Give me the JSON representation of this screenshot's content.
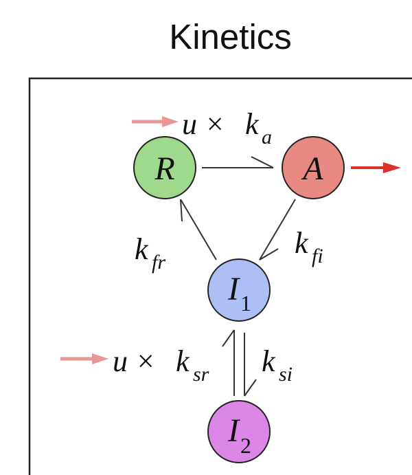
{
  "title": "Kinetics",
  "nodes": {
    "R": {
      "label": "R",
      "fill": "#9fd98b"
    },
    "A": {
      "label": "A",
      "fill": "#e88a82"
    },
    "I1": {
      "label": "I",
      "sub": "1",
      "fill": "#aebff6"
    },
    "I2": {
      "label": "I",
      "sub": "2",
      "fill": "#dc86e8"
    }
  },
  "rates": {
    "ka": {
      "prefix": "u × ",
      "k": "k",
      "sub": "a"
    },
    "kfr": {
      "k": "k",
      "sub": "fr"
    },
    "kfi": {
      "k": "k",
      "sub": "fi"
    },
    "ksr": {
      "prefix": "u × ",
      "k": "k",
      "sub": "sr"
    },
    "ksi": {
      "k": "k",
      "sub": "si"
    }
  },
  "colors": {
    "input_arrow": "#e89595",
    "output_arrow": "#d8322a",
    "edge": "#333333",
    "node_stroke": "#222222"
  }
}
